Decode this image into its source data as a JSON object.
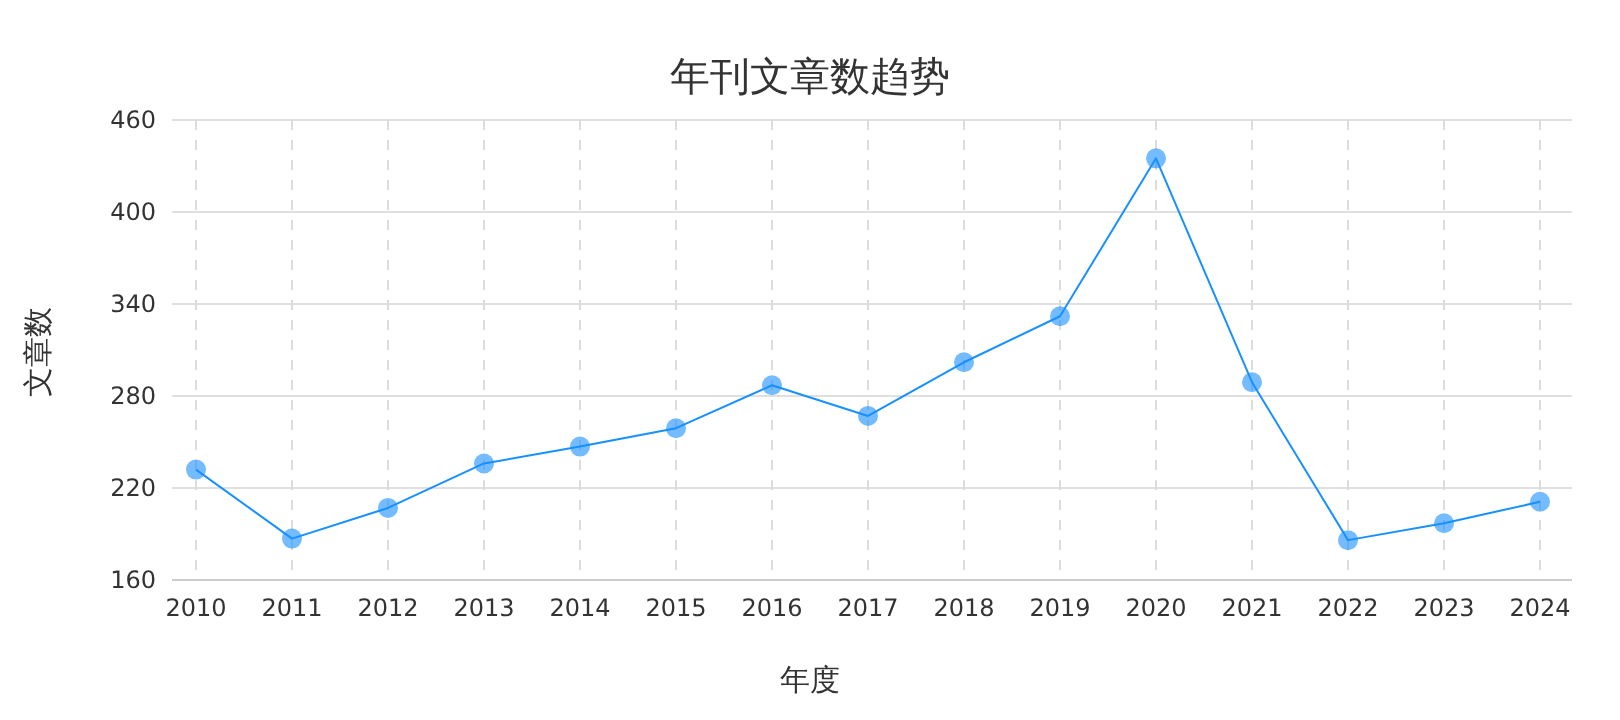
{
  "chart_data": {
    "type": "line",
    "title": "年刊文章数趋势",
    "xlabel": "年度",
    "ylabel": "文章数",
    "categories": [
      "2010",
      "2011",
      "2012",
      "2013",
      "2014",
      "2015",
      "2016",
      "2017",
      "2018",
      "2019",
      "2020",
      "2021",
      "2022",
      "2023",
      "2024"
    ],
    "series": [
      {
        "color": "#1890ff",
        "values": [
          232,
          187,
          207,
          236,
          247,
          259,
          287,
          267,
          302,
          332,
          435,
          289,
          186,
          197,
          211
        ]
      }
    ],
    "ylim": [
      160,
      460
    ],
    "yticks": [
      160,
      220,
      280,
      340,
      400,
      460
    ],
    "grid": true,
    "marker": "circle",
    "line_style": "solid"
  }
}
